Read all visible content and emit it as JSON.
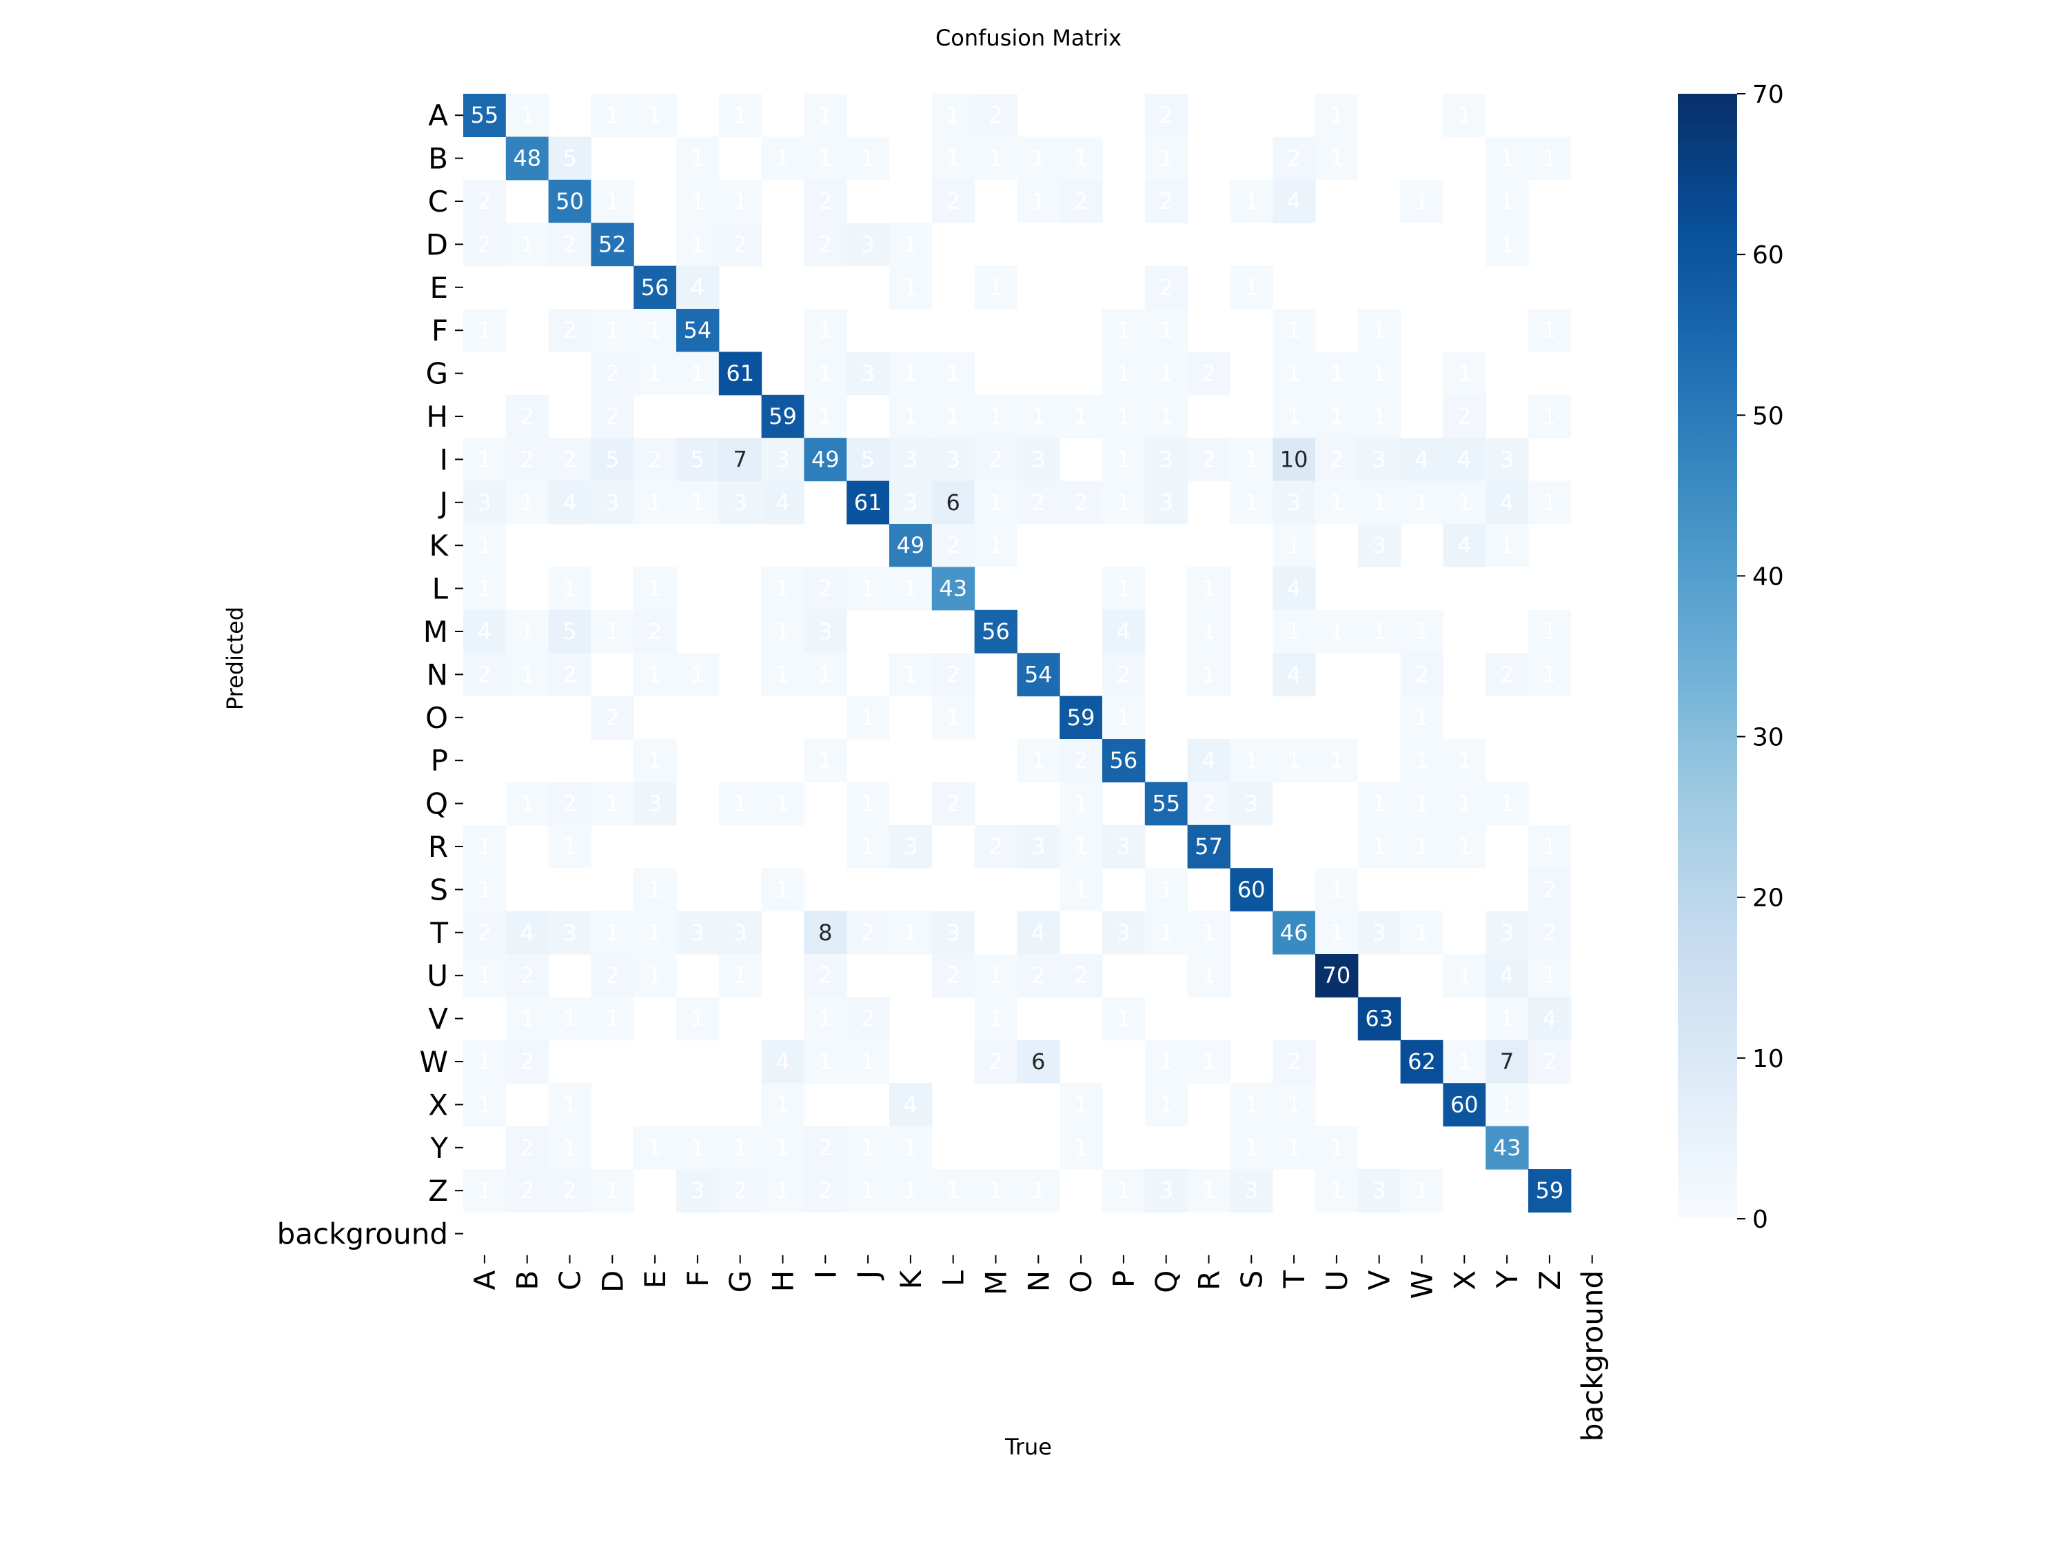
{
  "chart_data": {
    "type": "heatmap",
    "title": "Confusion Matrix",
    "xlabel": "True",
    "ylabel": "Predicted",
    "x_labels": [
      "A",
      "B",
      "C",
      "D",
      "E",
      "F",
      "G",
      "H",
      "I",
      "J",
      "K",
      "L",
      "M",
      "N",
      "O",
      "P",
      "Q",
      "R",
      "S",
      "T",
      "U",
      "V",
      "W",
      "X",
      "Y",
      "Z",
      "background"
    ],
    "y_labels": [
      "A",
      "B",
      "C",
      "D",
      "E",
      "F",
      "G",
      "H",
      "I",
      "J",
      "K",
      "L",
      "M",
      "N",
      "O",
      "P",
      "Q",
      "R",
      "S",
      "T",
      "U",
      "V",
      "W",
      "X",
      "Y",
      "Z",
      "background"
    ],
    "colorbar": {
      "min": 0,
      "max": 70,
      "ticks": [
        0,
        10,
        20,
        30,
        40,
        50,
        60,
        70
      ]
    },
    "colormap": [
      "#f7fbff",
      "#deebf7",
      "#c6dbef",
      "#9ecae1",
      "#6baed6",
      "#4292c6",
      "#2171b5",
      "#08519c",
      "#08306b"
    ],
    "matrix": [
      [
        55,
        1,
        0,
        1,
        1,
        0,
        1,
        0,
        1,
        0,
        0,
        1,
        2,
        0,
        0,
        0,
        2,
        0,
        0,
        0,
        1,
        0,
        0,
        1,
        0,
        0,
        0
      ],
      [
        0,
        48,
        5,
        0,
        0,
        1,
        0,
        1,
        1,
        1,
        0,
        1,
        1,
        1,
        1,
        0,
        1,
        0,
        0,
        2,
        1,
        0,
        0,
        0,
        1,
        1,
        0
      ],
      [
        2,
        0,
        50,
        1,
        0,
        1,
        1,
        0,
        2,
        0,
        0,
        2,
        0,
        1,
        2,
        0,
        2,
        0,
        1,
        4,
        0,
        0,
        1,
        0,
        1,
        0,
        0
      ],
      [
        2,
        1,
        2,
        52,
        0,
        1,
        2,
        0,
        2,
        3,
        1,
        0,
        0,
        0,
        0,
        0,
        0,
        0,
        0,
        0,
        0,
        0,
        0,
        0,
        1,
        0,
        0
      ],
      [
        0,
        0,
        0,
        0,
        56,
        4,
        0,
        0,
        0,
        0,
        1,
        0,
        1,
        0,
        0,
        0,
        2,
        0,
        1,
        0,
        0,
        0,
        0,
        0,
        0,
        0,
        0
      ],
      [
        1,
        0,
        2,
        1,
        1,
        54,
        0,
        0,
        1,
        0,
        0,
        0,
        0,
        0,
        0,
        1,
        1,
        0,
        0,
        1,
        0,
        1,
        0,
        0,
        0,
        1,
        0
      ],
      [
        0,
        0,
        0,
        2,
        1,
        1,
        61,
        0,
        1,
        3,
        1,
        1,
        0,
        0,
        0,
        1,
        1,
        2,
        0,
        1,
        1,
        1,
        0,
        1,
        0,
        0,
        0
      ],
      [
        0,
        2,
        0,
        2,
        0,
        0,
        0,
        59,
        1,
        0,
        1,
        1,
        1,
        1,
        1,
        1,
        1,
        0,
        0,
        1,
        1,
        1,
        0,
        2,
        0,
        1,
        0
      ],
      [
        1,
        2,
        2,
        5,
        2,
        5,
        7,
        3,
        49,
        5,
        3,
        3,
        2,
        3,
        0,
        1,
        3,
        2,
        1,
        10,
        2,
        3,
        4,
        4,
        3,
        0,
        0
      ],
      [
        3,
        1,
        4,
        3,
        1,
        1,
        3,
        4,
        0,
        61,
        3,
        6,
        1,
        2,
        2,
        1,
        3,
        0,
        1,
        3,
        1,
        1,
        1,
        1,
        4,
        1,
        0
      ],
      [
        1,
        0,
        0,
        0,
        0,
        0,
        0,
        0,
        0,
        0,
        49,
        2,
        1,
        0,
        0,
        0,
        0,
        0,
        0,
        1,
        0,
        3,
        0,
        4,
        1,
        0,
        0
      ],
      [
        1,
        0,
        1,
        0,
        1,
        0,
        0,
        1,
        2,
        1,
        1,
        43,
        0,
        0,
        0,
        1,
        0,
        1,
        0,
        4,
        0,
        0,
        0,
        0,
        0,
        0,
        0
      ],
      [
        4,
        1,
        5,
        1,
        2,
        0,
        0,
        1,
        3,
        0,
        0,
        0,
        56,
        0,
        0,
        4,
        0,
        1,
        0,
        1,
        1,
        1,
        1,
        0,
        0,
        1,
        0
      ],
      [
        2,
        1,
        2,
        0,
        1,
        1,
        0,
        1,
        1,
        0,
        1,
        2,
        0,
        54,
        0,
        2,
        0,
        1,
        0,
        4,
        0,
        0,
        2,
        0,
        2,
        1,
        0
      ],
      [
        0,
        0,
        0,
        2,
        0,
        0,
        0,
        0,
        0,
        1,
        0,
        1,
        0,
        0,
        59,
        1,
        0,
        0,
        0,
        0,
        0,
        0,
        1,
        0,
        0,
        0,
        0
      ],
      [
        0,
        0,
        0,
        0,
        1,
        0,
        0,
        0,
        1,
        0,
        0,
        0,
        0,
        1,
        2,
        56,
        0,
        4,
        1,
        1,
        1,
        0,
        1,
        1,
        0,
        0,
        0
      ],
      [
        0,
        1,
        2,
        1,
        3,
        0,
        1,
        1,
        0,
        1,
        0,
        2,
        0,
        0,
        1,
        0,
        55,
        2,
        3,
        0,
        0,
        1,
        1,
        1,
        1,
        0,
        0
      ],
      [
        1,
        0,
        1,
        0,
        0,
        0,
        0,
        0,
        0,
        1,
        3,
        0,
        2,
        3,
        1,
        3,
        0,
        57,
        0,
        0,
        0,
        1,
        1,
        1,
        0,
        1,
        0
      ],
      [
        1,
        0,
        0,
        0,
        1,
        0,
        0,
        1,
        0,
        0,
        0,
        0,
        0,
        0,
        1,
        0,
        1,
        0,
        60,
        0,
        1,
        0,
        0,
        0,
        0,
        2,
        0
      ],
      [
        2,
        4,
        3,
        1,
        1,
        3,
        3,
        0,
        8,
        2,
        1,
        3,
        0,
        4,
        0,
        3,
        1,
        1,
        0,
        46,
        1,
        3,
        1,
        0,
        3,
        2,
        0
      ],
      [
        1,
        2,
        0,
        2,
        1,
        0,
        1,
        0,
        2,
        0,
        0,
        2,
        1,
        2,
        2,
        0,
        0,
        1,
        0,
        0,
        70,
        0,
        0,
        1,
        4,
        1,
        0
      ],
      [
        0,
        1,
        1,
        1,
        0,
        1,
        0,
        0,
        1,
        2,
        0,
        0,
        1,
        0,
        0,
        1,
        0,
        0,
        0,
        0,
        0,
        63,
        0,
        0,
        1,
        4,
        0
      ],
      [
        1,
        2,
        0,
        0,
        0,
        0,
        0,
        4,
        1,
        1,
        0,
        0,
        2,
        6,
        0,
        0,
        1,
        1,
        0,
        2,
        0,
        0,
        62,
        1,
        7,
        2,
        0
      ],
      [
        1,
        0,
        1,
        0,
        0,
        0,
        0,
        1,
        0,
        0,
        4,
        0,
        0,
        0,
        1,
        0,
        1,
        0,
        1,
        1,
        0,
        0,
        0,
        60,
        1,
        0,
        0
      ],
      [
        0,
        2,
        1,
        0,
        1,
        1,
        1,
        1,
        2,
        1,
        1,
        0,
        0,
        0,
        1,
        0,
        0,
        0,
        1,
        1,
        1,
        0,
        0,
        0,
        43,
        0,
        0
      ],
      [
        1,
        2,
        2,
        1,
        0,
        3,
        2,
        1,
        2,
        1,
        1,
        1,
        1,
        1,
        0,
        1,
        3,
        1,
        3,
        0,
        1,
        3,
        1,
        0,
        0,
        59,
        0
      ],
      [
        0,
        0,
        0,
        0,
        0,
        0,
        0,
        0,
        0,
        0,
        0,
        0,
        0,
        0,
        0,
        0,
        0,
        0,
        0,
        0,
        0,
        0,
        0,
        0,
        0,
        0,
        0
      ]
    ]
  }
}
